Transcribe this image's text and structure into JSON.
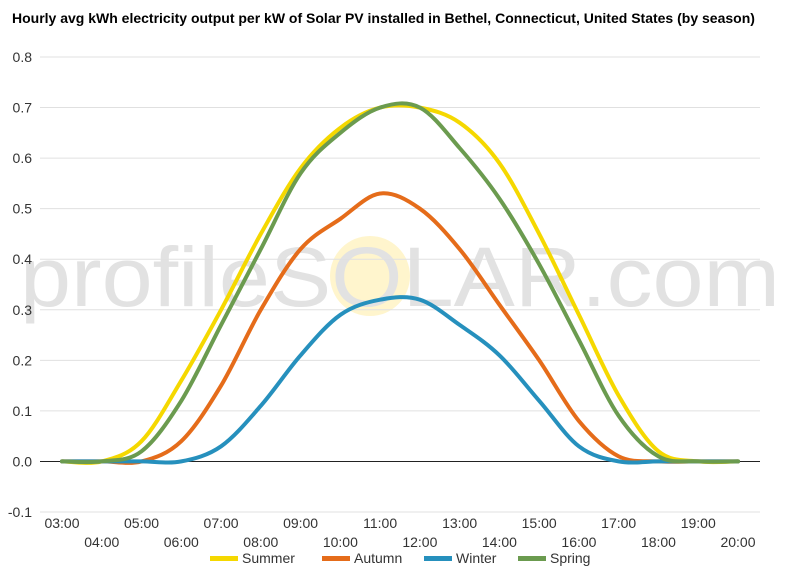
{
  "chart_data": {
    "type": "line",
    "title": "Hourly avg kWh electricity output per kW of Solar PV installed in Bethel, Connecticut, United States (by season)",
    "xlabel": "",
    "ylabel": "",
    "x_ticks": [
      "03:00",
      "04:00",
      "05:00",
      "06:00",
      "07:00",
      "08:00",
      "09:00",
      "10:00",
      "11:00",
      "12:00",
      "13:00",
      "14:00",
      "15:00",
      "16:00",
      "17:00",
      "18:00",
      "19:00",
      "20:00"
    ],
    "ylim": [
      -0.1,
      0.8
    ],
    "y_ticks": [
      "-0.1",
      "0.0",
      "0.1",
      "0.2",
      "0.3",
      "0.4",
      "0.5",
      "0.6",
      "0.7",
      "0.8"
    ],
    "grid": true,
    "legend": "bottom",
    "watermark": "profileSOLAR.com",
    "series": [
      {
        "name": "Summer",
        "color": "#f5d800",
        "values": [
          0.0,
          0.0,
          0.04,
          0.16,
          0.3,
          0.45,
          0.58,
          0.66,
          0.7,
          0.7,
          0.67,
          0.59,
          0.45,
          0.29,
          0.13,
          0.02,
          0.0,
          0.0
        ]
      },
      {
        "name": "Autumn",
        "color": "#e56c1a",
        "values": [
          0.0,
          0.0,
          0.0,
          0.04,
          0.15,
          0.3,
          0.42,
          0.48,
          0.53,
          0.5,
          0.42,
          0.31,
          0.2,
          0.08,
          0.01,
          0.0,
          0.0,
          0.0
        ]
      },
      {
        "name": "Winter",
        "color": "#2690bd",
        "values": [
          0.0,
          0.0,
          0.0,
          0.0,
          0.03,
          0.11,
          0.21,
          0.29,
          0.32,
          0.32,
          0.27,
          0.21,
          0.12,
          0.03,
          0.0,
          0.0,
          0.0,
          0.0
        ]
      },
      {
        "name": "Spring",
        "color": "#6b9b4f",
        "values": [
          0.0,
          0.0,
          0.02,
          0.12,
          0.27,
          0.42,
          0.57,
          0.65,
          0.7,
          0.7,
          0.62,
          0.52,
          0.39,
          0.24,
          0.09,
          0.01,
          0.0,
          0.0
        ]
      }
    ]
  }
}
